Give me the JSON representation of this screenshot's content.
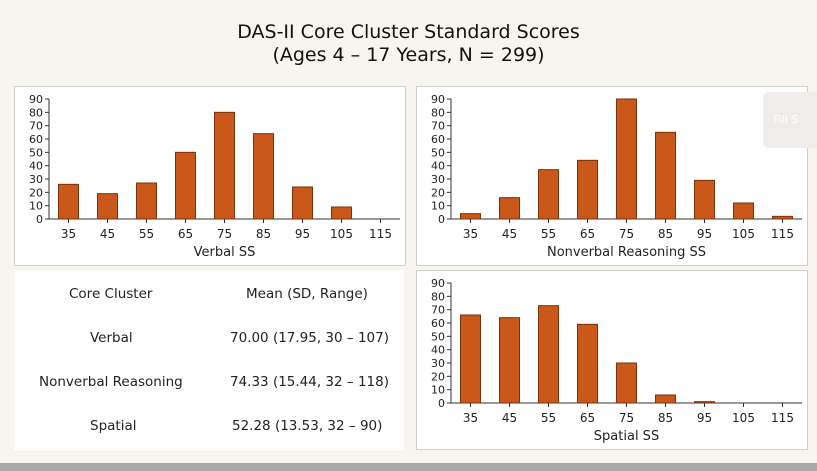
{
  "page": {
    "title_line1": "DAS-II Core Cluster Standard Scores",
    "title_line2": "(Ages 4 – 17 Years, N = 299)",
    "fill_button_label": "Fill S",
    "colors": {
      "bar": "#c9581a",
      "bar_edge": "#7a3208",
      "background": "#f8f5ee"
    }
  },
  "table": {
    "header": {
      "cluster": "Core Cluster",
      "stats": "Mean (SD, Range)"
    },
    "rows": [
      {
        "cluster": "Verbal",
        "stats": "70.00 (17.95, 30 – 107)"
      },
      {
        "cluster": "Nonverbal Reasoning",
        "stats": "74.33 (15.44, 32 – 118)"
      },
      {
        "cluster": "Spatial",
        "stats": "52.28 (13.53, 32 – 90)"
      }
    ]
  },
  "chart_data": [
    {
      "id": "verbal",
      "type": "bar",
      "title": "",
      "xlabel": "Verbal SS",
      "ylabel": "",
      "categories": [
        "35",
        "45",
        "55",
        "65",
        "75",
        "85",
        "95",
        "105",
        "115"
      ],
      "values": [
        26,
        19,
        27,
        50,
        80,
        64,
        24,
        9,
        0
      ],
      "ylim": [
        0,
        90
      ],
      "yticks": [
        0,
        10,
        20,
        30,
        40,
        50,
        60,
        70,
        80,
        90
      ],
      "grid": false
    },
    {
      "id": "nonverbal",
      "type": "bar",
      "title": "",
      "xlabel": "Nonverbal Reasoning SS",
      "ylabel": "",
      "categories": [
        "35",
        "45",
        "55",
        "65",
        "75",
        "85",
        "95",
        "105",
        "115"
      ],
      "values": [
        4,
        16,
        37,
        44,
        90,
        65,
        29,
        12,
        2
      ],
      "ylim": [
        0,
        90
      ],
      "yticks": [
        0,
        10,
        20,
        30,
        40,
        50,
        60,
        70,
        80,
        90
      ],
      "grid": false
    },
    {
      "id": "spatial",
      "type": "bar",
      "title": "",
      "xlabel": "Spatial SS",
      "ylabel": "",
      "categories": [
        "35",
        "45",
        "55",
        "65",
        "75",
        "85",
        "95",
        "105",
        "115"
      ],
      "values": [
        66,
        64,
        73,
        59,
        30,
        6,
        1,
        0,
        0
      ],
      "ylim": [
        0,
        90
      ],
      "yticks": [
        0,
        10,
        20,
        30,
        40,
        50,
        60,
        70,
        80,
        90
      ],
      "grid": false
    }
  ]
}
